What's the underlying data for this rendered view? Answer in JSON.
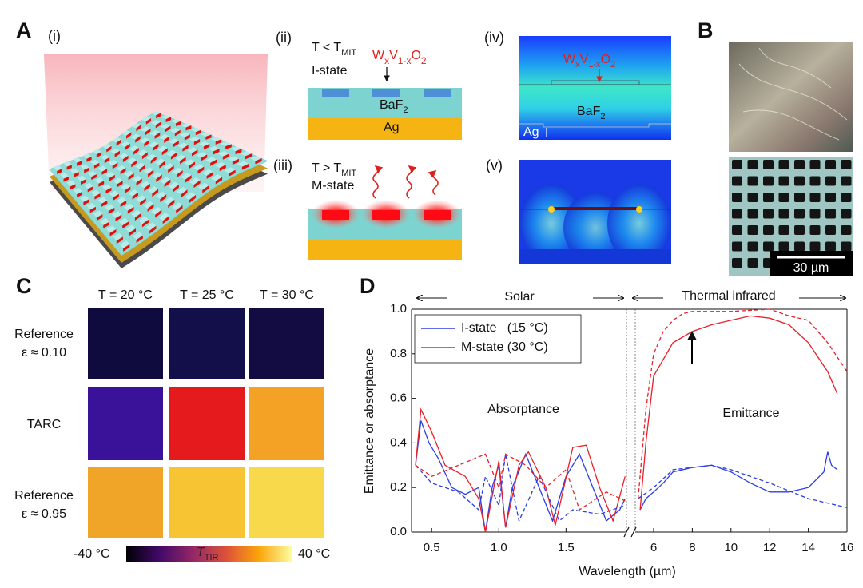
{
  "panel_a": {
    "label": "A",
    "sublabel": "(i)"
  },
  "panel_ii": {
    "label": "(ii)",
    "condition": [
      "T < T",
      "MIT"
    ],
    "state": "I-state",
    "material": [
      "W",
      "x",
      "V",
      "1-x",
      "O",
      "2"
    ],
    "substrate": [
      "BaF",
      "2"
    ],
    "metal": "Ag"
  },
  "panel_iii": {
    "label": "(iii)",
    "condition": [
      "T > T",
      "MIT"
    ],
    "state": "M-state"
  },
  "panel_iv": {
    "label": "(iv)",
    "material": [
      "W",
      "x",
      "V",
      "1-x",
      "O",
      "2"
    ],
    "substrate": [
      "BaF",
      "2"
    ],
    "metal": "Ag"
  },
  "panel_v": {
    "label": "(v)"
  },
  "panel_b": {
    "label": "B",
    "scale_bar": "30 µm"
  },
  "panel_c": {
    "label": "C",
    "columns": [
      "T = 20 °C",
      "T = 25 °C",
      "T = 30 °C"
    ],
    "rows": [
      [
        "Reference",
        "ε ≈ 0.10"
      ],
      [
        "TARC"
      ],
      [
        "Reference",
        "ε ≈ 0.95"
      ]
    ],
    "colorbar": {
      "min": "-40 °C",
      "symbol": [
        "T",
        "TIR"
      ],
      "max": "40 °C"
    }
  },
  "chart_data": {
    "type": "line",
    "panel_label": "D",
    "xlabel": "Wavelength (µm)",
    "ylabel": "Emittance or absorptance",
    "annotations": {
      "solar": "Solar",
      "thermal": "Thermal infrared",
      "absorptance": "Absorptance",
      "emittance": "Emittance"
    },
    "xlim_segments": [
      [
        0.35,
        1.95
      ],
      [
        5.05,
        16
      ]
    ],
    "xticks": [
      0.5,
      {
        "value": 1,
        "label": "1.0"
      },
      1.5,
      6,
      8,
      10,
      12,
      14,
      16
    ],
    "ylim": [
      0,
      1
    ],
    "yticks": [
      {
        "value": 0,
        "label": "0.0"
      },
      0.2,
      0.4,
      0.6,
      0.8,
      {
        "value": 1,
        "label": "1.0"
      }
    ],
    "legend": "upper left",
    "series": [
      {
        "name": "I-state   (15 °C)",
        "color": "#2b3ee6",
        "dashed": false,
        "x": [
          0.38,
          0.42,
          0.48,
          0.55,
          0.65,
          0.75,
          0.85,
          0.9,
          0.95,
          1.0,
          1.05,
          1.1,
          1.2,
          1.3,
          1.4,
          1.5,
          1.6,
          1.7,
          1.8,
          1.9,
          1.94,
          null,
          5.3,
          5.6,
          6,
          6.5,
          7,
          8,
          9,
          10,
          11,
          12,
          13,
          14,
          14.8,
          15,
          15.2,
          15.5
        ],
        "values": [
          0.3,
          0.5,
          0.4,
          0.33,
          0.2,
          0.17,
          0.2,
          0.0,
          0.2,
          0.3,
          0.02,
          0.2,
          0.35,
          0.2,
          0.05,
          0.25,
          0.35,
          0.2,
          0.05,
          0.1,
          0.15,
          null,
          0.1,
          0.15,
          0.18,
          0.22,
          0.27,
          0.29,
          0.3,
          0.27,
          0.22,
          0.18,
          0.18,
          0.2,
          0.27,
          0.36,
          0.3,
          0.28
        ]
      },
      {
        "name": "M-state (30 °C)",
        "color": "#e8202a",
        "dashed": false,
        "x": [
          0.38,
          0.42,
          0.5,
          0.6,
          0.75,
          0.85,
          0.9,
          1.0,
          1.05,
          1.15,
          1.22,
          1.35,
          1.42,
          1.55,
          1.65,
          1.75,
          1.85,
          1.94,
          null,
          5.3,
          5.6,
          6,
          7,
          8,
          9,
          10,
          11,
          12,
          13,
          14,
          15,
          15.5
        ],
        "values": [
          0.3,
          0.55,
          0.45,
          0.3,
          0.25,
          0.15,
          0.0,
          0.32,
          0.02,
          0.3,
          0.36,
          0.2,
          0.03,
          0.38,
          0.39,
          0.2,
          0.05,
          0.25,
          null,
          0.1,
          0.4,
          0.7,
          0.85,
          0.9,
          0.93,
          0.95,
          0.97,
          0.96,
          0.93,
          0.85,
          0.72,
          0.62
        ]
      },
      {
        "color": "#2b3ee6",
        "dashed": true,
        "x": [
          0.38,
          0.5,
          0.7,
          0.85,
          0.9,
          1.0,
          1.05,
          1.15,
          1.3,
          1.45,
          1.55,
          1.75,
          1.94,
          null,
          5.2,
          6,
          7,
          8,
          9,
          10,
          11,
          12,
          14,
          16
        ],
        "values": [
          0.3,
          0.22,
          0.18,
          0.1,
          0.25,
          0.12,
          0.35,
          0.05,
          0.25,
          0.05,
          0.1,
          0.08,
          0.12,
          null,
          0.15,
          0.2,
          0.28,
          0.29,
          0.3,
          0.28,
          0.25,
          0.22,
          0.15,
          0.11
        ]
      },
      {
        "color": "#e8202a",
        "dashed": true,
        "x": [
          0.38,
          0.5,
          0.7,
          0.9,
          1.0,
          1.05,
          1.2,
          1.35,
          1.5,
          1.6,
          1.8,
          1.94,
          null,
          5.2,
          5.6,
          6,
          6.5,
          7,
          7.5,
          8,
          10,
          12,
          13,
          14,
          15,
          16
        ],
        "values": [
          0.3,
          0.25,
          0.3,
          0.35,
          0.2,
          0.35,
          0.3,
          0.2,
          0.28,
          0.1,
          0.18,
          0.14,
          null,
          0.15,
          0.55,
          0.8,
          0.9,
          0.95,
          0.98,
          0.99,
          0.99,
          1.0,
          0.97,
          0.95,
          0.85,
          0.72
        ]
      }
    ]
  }
}
